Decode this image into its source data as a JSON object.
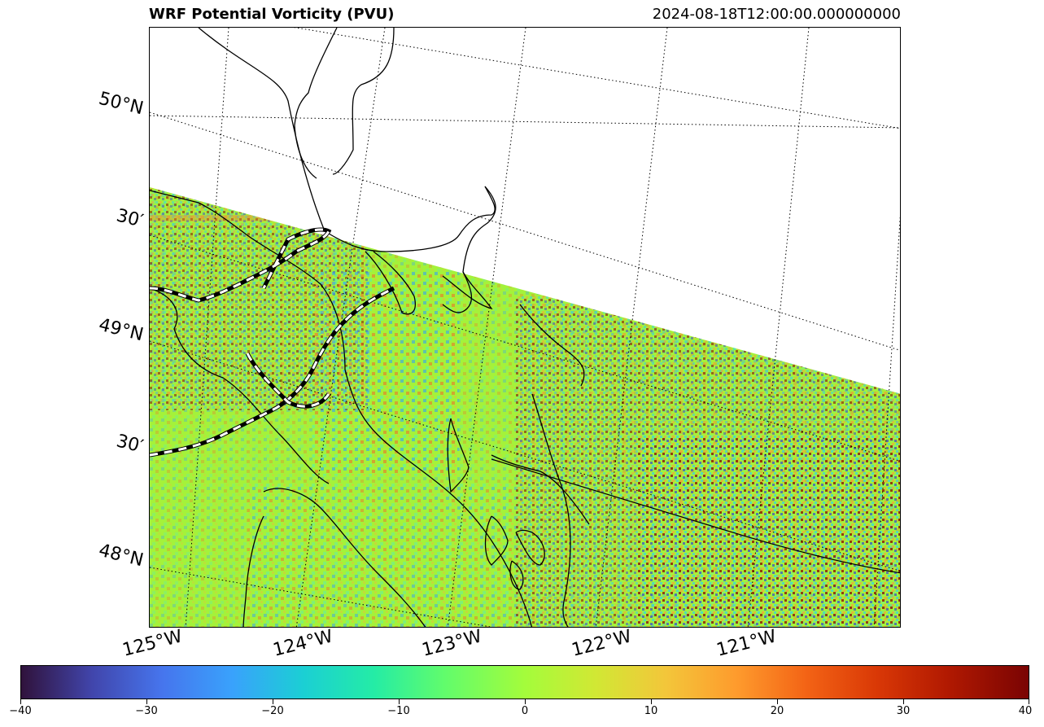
{
  "title": "WRF Potential Vorticity (PVU)",
  "timestamp": "2024-08-18T12:00:00.000000000",
  "map": {
    "lat_labels": [
      "50°N",
      "30′",
      "49°N",
      "30′",
      "48°N"
    ],
    "lon_labels": [
      "125°W",
      "124°W",
      "123°W",
      "122°W",
      "121°W"
    ],
    "gridline_style": "dotted",
    "coastline_color": "#000000",
    "border_style": "dashed black and white"
  },
  "colorbar": {
    "cmap": "turbo",
    "min": -40,
    "max": 40,
    "tick_labels": [
      "−40",
      "−30",
      "−20",
      "−10",
      "0",
      "10",
      "20",
      "30",
      "40"
    ]
  }
}
